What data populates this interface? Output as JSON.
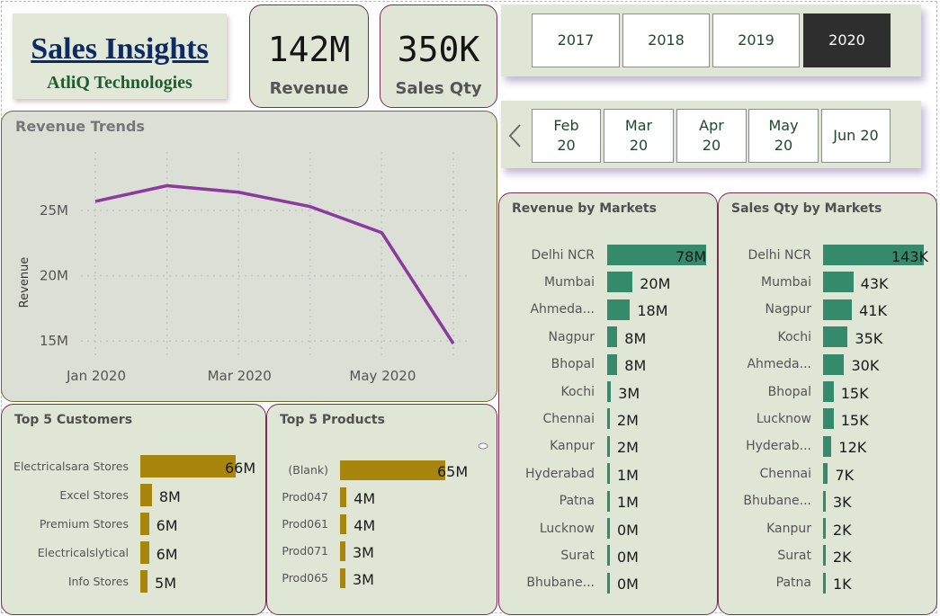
{
  "logo": {
    "title": "Sales Insights",
    "subtitle": "AtliQ Technologies"
  },
  "kpis": {
    "revenue": {
      "value": "142M",
      "label": "Revenue"
    },
    "sales_qty": {
      "value": "350K",
      "label": "Sales Qty"
    }
  },
  "year_slicer": {
    "options": [
      "2017",
      "2018",
      "2019",
      "2020"
    ],
    "selected": "2020"
  },
  "month_slicer": {
    "options": [
      "Feb\n20",
      "Mar\n20",
      "Apr\n20",
      "May\n20",
      "Jun 20"
    ]
  },
  "revenue_trends": {
    "title": "Revenue Trends",
    "chart_data": {
      "type": "line",
      "x": [
        "2020-01",
        "2020-02",
        "2020-03",
        "2020-04",
        "2020-05",
        "2020-06"
      ],
      "values": [
        25.7,
        26.9,
        26.4,
        25.3,
        23.3,
        14.8
      ],
      "x_ticks": [
        "Jan 2020",
        "Mar 2020",
        "May 2020"
      ],
      "y_ticks": [
        "15M",
        "20M",
        "25M"
      ],
      "ylabel": "Revenue",
      "ylim": [
        13.5,
        29
      ],
      "line_color": "#8b3a9e",
      "grid": true
    }
  },
  "revenue_by_markets": {
    "title": "Revenue by Markets",
    "chart_data": {
      "type": "bar",
      "categories": [
        "Delhi NCR",
        "Mumbai",
        "Ahmeda...",
        "Nagpur",
        "Bhopal",
        "Kochi",
        "Chennai",
        "Kanpur",
        "Hyderabad",
        "Patna",
        "Lucknow",
        "Surat",
        "Bhubane..."
      ],
      "values": [
        78,
        20,
        18,
        8,
        8,
        3,
        2,
        2,
        1,
        1,
        0,
        0,
        0
      ],
      "labels": [
        "78M",
        "20M",
        "18M",
        "8M",
        "8M",
        "3M",
        "2M",
        "2M",
        "1M",
        "1M",
        "0M",
        "0M",
        "0M"
      ],
      "color": "#348a6a"
    }
  },
  "sales_qty_by_markets": {
    "title": "Sales Qty by Markets",
    "chart_data": {
      "type": "bar",
      "categories": [
        "Delhi NCR",
        "Mumbai",
        "Nagpur",
        "Kochi",
        "Ahmeda...",
        "Bhopal",
        "Lucknow",
        "Hyderab...",
        "Chennai",
        "Bhubane...",
        "Kanpur",
        "Surat",
        "Patna"
      ],
      "values": [
        143,
        43,
        41,
        35,
        30,
        15,
        15,
        12,
        7,
        3,
        2,
        2,
        1
      ],
      "labels": [
        "143K",
        "43K",
        "41K",
        "35K",
        "30K",
        "15K",
        "15K",
        "12K",
        "7K",
        "3K",
        "2K",
        "2K",
        "1K"
      ],
      "color": "#348a6a"
    }
  },
  "top_customers": {
    "title": "Top 5 Customers",
    "chart_data": {
      "type": "bar",
      "categories": [
        "Electricalsara Stores",
        "Excel Stores",
        "Premium Stores",
        "Electricalslytical",
        "Info Stores"
      ],
      "values": [
        66,
        8,
        6,
        6,
        5
      ],
      "labels": [
        "66M",
        "8M",
        "6M",
        "6M",
        "5M"
      ],
      "color": "#a8860e"
    }
  },
  "top_products": {
    "title": "Top 5 Products",
    "chart_data": {
      "type": "bar",
      "categories": [
        "(Blank)",
        "Prod047",
        "Prod061",
        "Prod071",
        "Prod065"
      ],
      "values": [
        65,
        4,
        4,
        3,
        3
      ],
      "labels": [
        "65M",
        "4M",
        "4M",
        "3M",
        "3M"
      ],
      "color": "#a8860e"
    }
  }
}
